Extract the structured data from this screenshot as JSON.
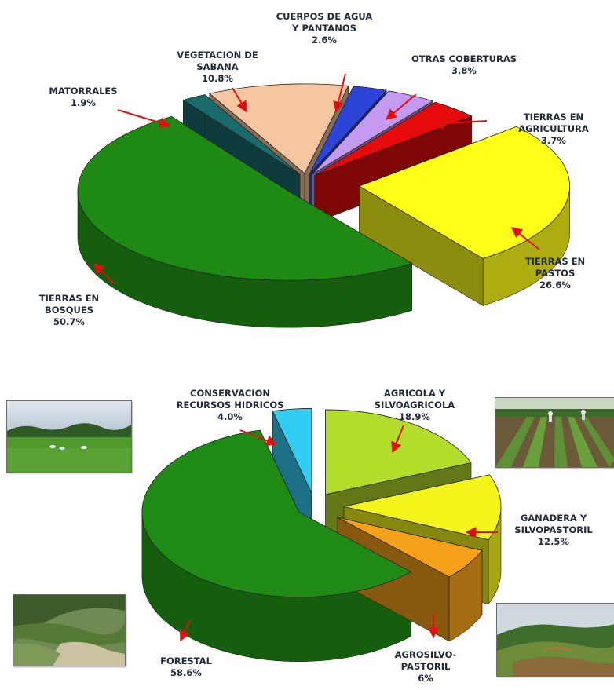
{
  "chart_data": [
    {
      "type": "pie",
      "title": "",
      "slices": [
        {
          "name": "CUERPOS DE AGUA Y PANTANOS",
          "value": 2.6,
          "label_lines": [
            "CUERPOS DE AGUA",
            "Y PANTANOS",
            "2.6%"
          ],
          "color": "#2d45d6"
        },
        {
          "name": "OTRAS COBERTURAS",
          "value": 3.8,
          "label_lines": [
            "OTRAS COBERTURAS",
            "3.8%"
          ],
          "color": "#c39af0"
        },
        {
          "name": "TIERRAS EN AGRICULTURA",
          "value": 3.7,
          "label_lines": [
            "TIERRAS EN",
            "AGRICULTURA",
            "3.7%"
          ],
          "color": "#e60a0a"
        },
        {
          "name": "TIERRAS EN PASTOS",
          "value": 26.6,
          "label_lines": [
            "TIERRAS EN",
            "PASTOS",
            "26.6%"
          ],
          "color": "#ffff1a"
        },
        {
          "name": "TIERRAS EN BOSQUES",
          "value": 50.7,
          "label_lines": [
            "TIERRAS EN",
            "BOSQUES",
            "50.7%"
          ],
          "color": "#1e8a14"
        },
        {
          "name": "MATORRALES",
          "value": 1.9,
          "label_lines": [
            "MATORRALES",
            "1.9%"
          ],
          "color": "#1a6b6b"
        },
        {
          "name": "VEGETACION DE SABANA",
          "value": 10.8,
          "label_lines": [
            "VEGETACION DE",
            "SABANA",
            "10.8%"
          ],
          "color": "#f5c6a0"
        }
      ]
    },
    {
      "type": "pie",
      "title": "",
      "slices": [
        {
          "name": "AGRICOLA Y SILVOAGRICOLA",
          "value": 18.9,
          "label_lines": [
            "AGRICOLA Y",
            "SILVOAGRICOLA",
            "18.9%"
          ],
          "color": "#b4dc2a"
        },
        {
          "name": "GANADERA Y SILVOPASTORIL",
          "value": 12.5,
          "label_lines": [
            "GANADERA Y",
            "SILVOPASTORIL",
            "12.5%"
          ],
          "color": "#f4f51a"
        },
        {
          "name": "AGROSILVO-PASTORIL",
          "value": 6,
          "label_lines": [
            "AGROSILVO-",
            "PASTORIL",
            "6%"
          ],
          "color": "#f6a11a"
        },
        {
          "name": "FORESTAL",
          "value": 58.6,
          "label_lines": [
            "FORESTAL",
            "58.6%"
          ],
          "color": "#1f8a14"
        },
        {
          "name": "CONSERVACION RECURSOS HIDRICOS",
          "value": 4.0,
          "label_lines": [
            "CONSERVACION",
            "RECURSOS HIDRICOS",
            "4.0%"
          ],
          "color": "#33ccf2"
        }
      ]
    }
  ],
  "photos": [
    {
      "name": "pasture-photo",
      "subject": "cattle grazing on a green pasture"
    },
    {
      "name": "crop-rows-photo",
      "subject": "rows of crops with farm workers"
    },
    {
      "name": "forest-valley-photo",
      "subject": "forested hillside and valley"
    },
    {
      "name": "mountain-slope-photo",
      "subject": "mountain slopes with patchwork vegetation"
    }
  ]
}
